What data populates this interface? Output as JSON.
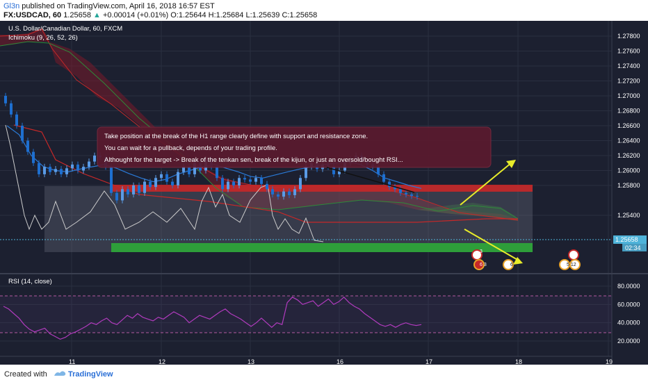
{
  "header": {
    "author": "Gl3n",
    "published": " published on TradingView.com, April 16, 2018 16:57 EST",
    "symbol": "FX:USDCAD, 60",
    "last": "1.25658",
    "change": "+0.00014 (+0.01%)",
    "ohlc": "O:1.25644 H:1.25684 L:1.25639 C:1.25658"
  },
  "main_pane": {
    "title": "U.S. Dollar/Canadian Dollar, 60, FXCM",
    "indicator": "Ichimoku (9, 26, 52, 26)",
    "price_ticks": [
      "1.27800",
      "1.27600",
      "1.27400",
      "1.27200",
      "1.27000",
      "1.26800",
      "1.26600",
      "1.26400",
      "1.26200",
      "1.26000",
      "1.25800",
      "1.25400"
    ],
    "last_price": "1.25658",
    "countdown": "02:34",
    "annotation": [
      "Take position at the break of the H1 range clearly define with support and resistance zone.",
      "You can wait for a pullback, depends of your trading profile.",
      "Althought for the target -> Break of the tenkan sen, break of the kijun, or just an oversold/bought RSI..."
    ],
    "event_badges": [
      {
        "label": "3",
        "sub": "6 3"
      },
      {
        "label": "",
        "sub": "6"
      },
      {
        "label": "",
        "sub": "5 12"
      }
    ]
  },
  "rsi_pane": {
    "title": "RSI (14, close)",
    "ticks": [
      "80.0000",
      "60.0000",
      "40.0000",
      "20.0000"
    ]
  },
  "x_ticks": [
    "11",
    "12",
    "13",
    "16",
    "17",
    "18",
    "19"
  ],
  "footer": {
    "created": "Created with",
    "brand": "TradingView"
  },
  "colors": {
    "background": "#1c2030",
    "resistance": "#c62828",
    "support": "#2e9e3a",
    "arrow": "#e8ec2a",
    "candle_up": "#5a9be6",
    "candle_down": "#1e6fd0",
    "tenkan": "#2a7ad8",
    "kijun": "#c62828",
    "chikou": "#cccccc",
    "rsi": "#b03bbd"
  },
  "chart_data": {
    "type": "candlestick",
    "instrument": "U.S. Dollar/Canadian Dollar",
    "timeframe": "60",
    "ylim": [
      1.2535,
      1.279
    ],
    "resistance_zone": [
      1.2613,
      1.2623
    ],
    "support_zone": [
      1.2551,
      1.2561
    ],
    "range_zone": [
      1.2554,
      1.262
    ],
    "rsi_ylim": [
      10,
      90
    ],
    "rsi_bands": [
      70,
      30
    ],
    "x": [
      "11",
      "12",
      "13",
      "16",
      "17",
      "18",
      "19"
    ],
    "rsi": [
      58,
      55,
      50,
      45,
      38,
      33,
      30,
      32,
      34,
      28,
      25,
      22,
      24,
      28,
      30,
      33,
      36,
      40,
      38,
      42,
      45,
      40,
      38,
      43,
      48,
      45,
      50,
      46,
      44,
      42,
      46,
      44,
      48,
      52,
      49,
      46,
      40,
      44,
      48,
      46,
      44,
      48,
      52,
      55,
      50,
      47,
      44,
      40,
      36,
      40,
      45,
      40,
      35,
      40,
      38,
      62,
      68,
      65,
      60,
      62,
      64,
      58,
      62,
      66,
      60,
      63,
      68,
      62,
      58,
      55,
      50,
      46,
      42,
      38,
      36,
      38,
      35,
      38,
      40,
      38,
      37,
      38
    ],
    "tenkan": [
      1.266,
      1.2648,
      1.262,
      1.2605,
      1.26,
      1.2598,
      1.2602,
      1.2605,
      1.2608,
      1.2603,
      1.2596,
      1.259,
      1.2585,
      1.2588,
      1.2595,
      1.26,
      1.2605,
      1.2608,
      1.2603,
      1.2598,
      1.2592,
      1.259,
      1.2594,
      1.2598,
      1.2602,
      1.2605,
      1.2608,
      1.261,
      1.2612,
      1.2608,
      1.26,
      1.259,
      1.2585,
      1.258,
      1.2576
    ]
  }
}
